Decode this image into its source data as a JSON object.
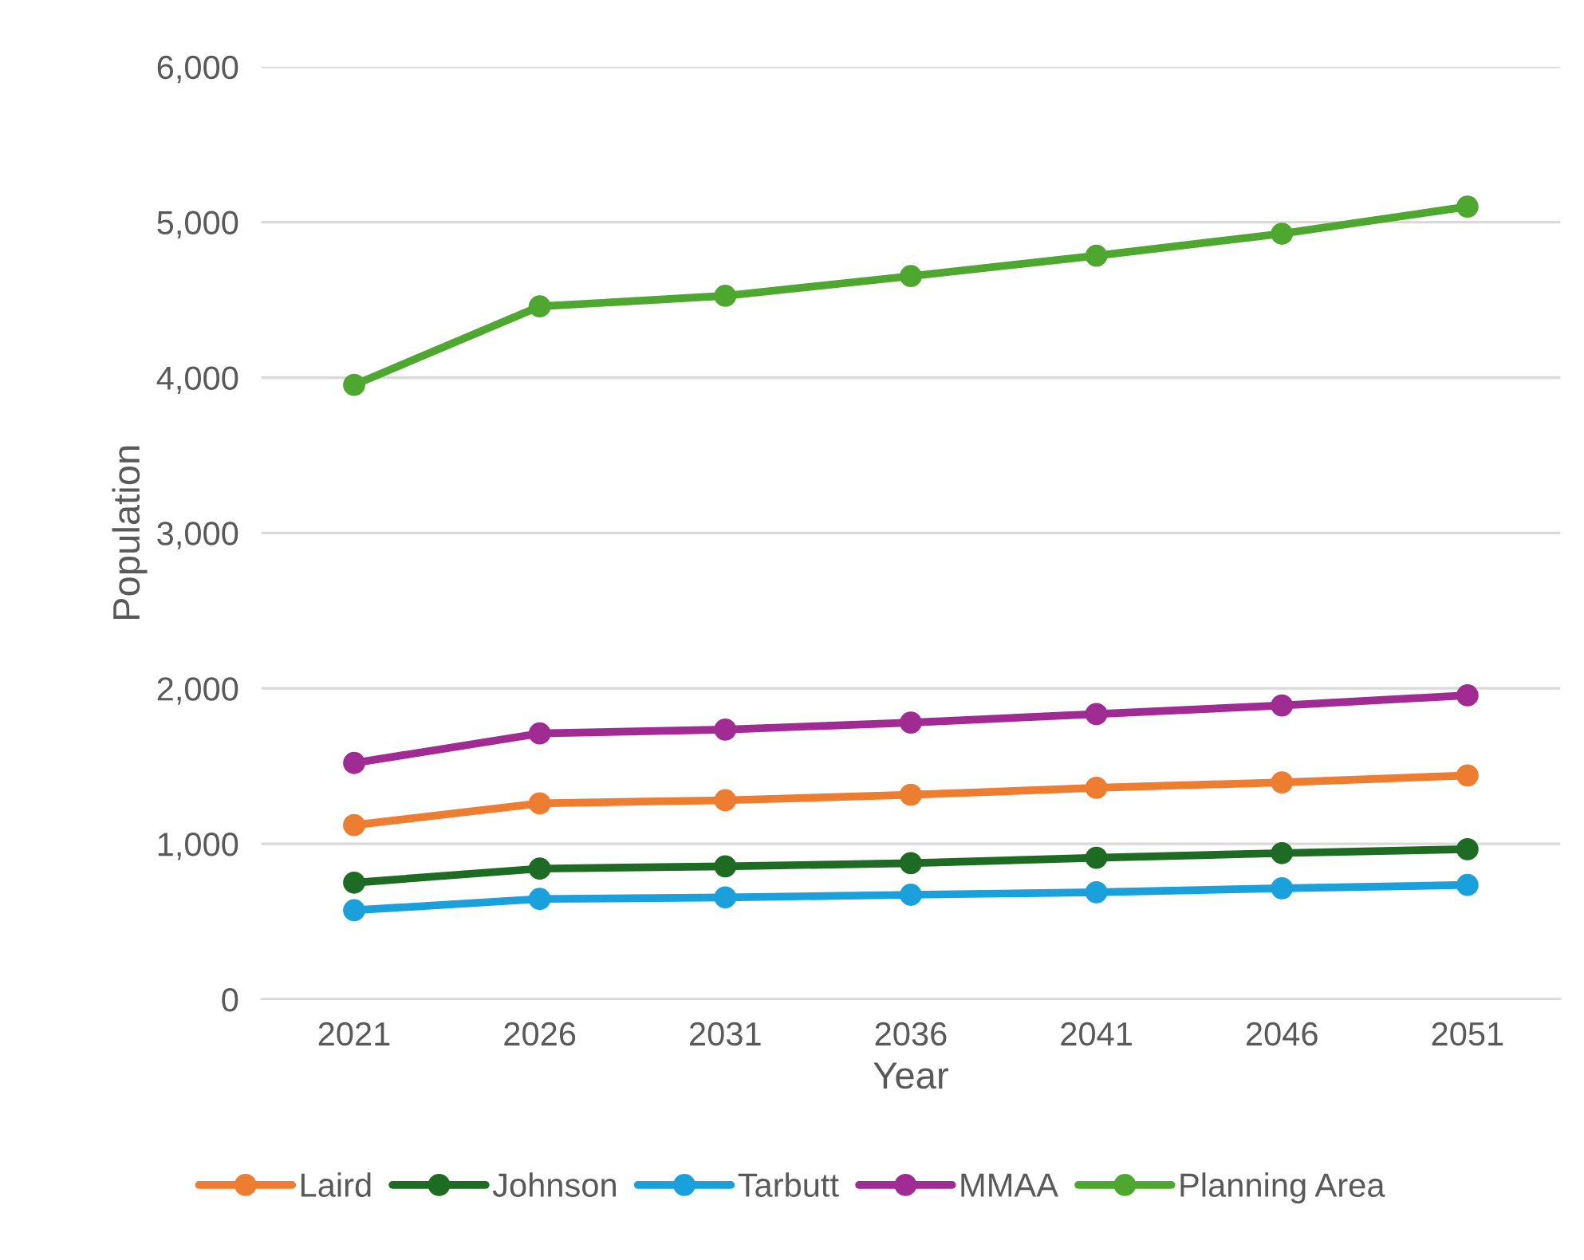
{
  "chart_data": {
    "type": "line",
    "xlabel": "Year",
    "ylabel": "Population",
    "categories": [
      "2021",
      "2026",
      "2031",
      "2036",
      "2041",
      "2046",
      "2051"
    ],
    "series": [
      {
        "name": "Laird",
        "color": "#ed7d31",
        "values": [
          1120,
          1260,
          1280,
          1315,
          1360,
          1395,
          1440
        ]
      },
      {
        "name": "Johnson",
        "color": "#1e6b24",
        "values": [
          750,
          840,
          855,
          875,
          910,
          940,
          965
        ]
      },
      {
        "name": "Tarbutt",
        "color": "#1aa0db",
        "values": [
          572,
          645,
          655,
          672,
          688,
          714,
          735
        ]
      },
      {
        "name": "MMAA",
        "color": "#a02b93",
        "values": [
          1520,
          1710,
          1735,
          1780,
          1835,
          1890,
          1955
        ]
      },
      {
        "name": "Planning Area",
        "color": "#4ea72e",
        "values": [
          3953,
          4458,
          4526,
          4653,
          4784,
          4926,
          5100
        ]
      }
    ],
    "ylim": [
      0,
      6000
    ],
    "yticks": [
      {
        "value": 0,
        "label": "0"
      },
      {
        "value": 1000,
        "label": "1,000"
      },
      {
        "value": 2000,
        "label": "2,000"
      },
      {
        "value": 3000,
        "label": "3,000"
      },
      {
        "value": 4000,
        "label": "4,000"
      },
      {
        "value": 5000,
        "label": "5,000"
      },
      {
        "value": 6000,
        "label": "6,000"
      }
    ],
    "grid": "y",
    "legend": "bottom",
    "marker": "circle",
    "line_style": "solid"
  }
}
